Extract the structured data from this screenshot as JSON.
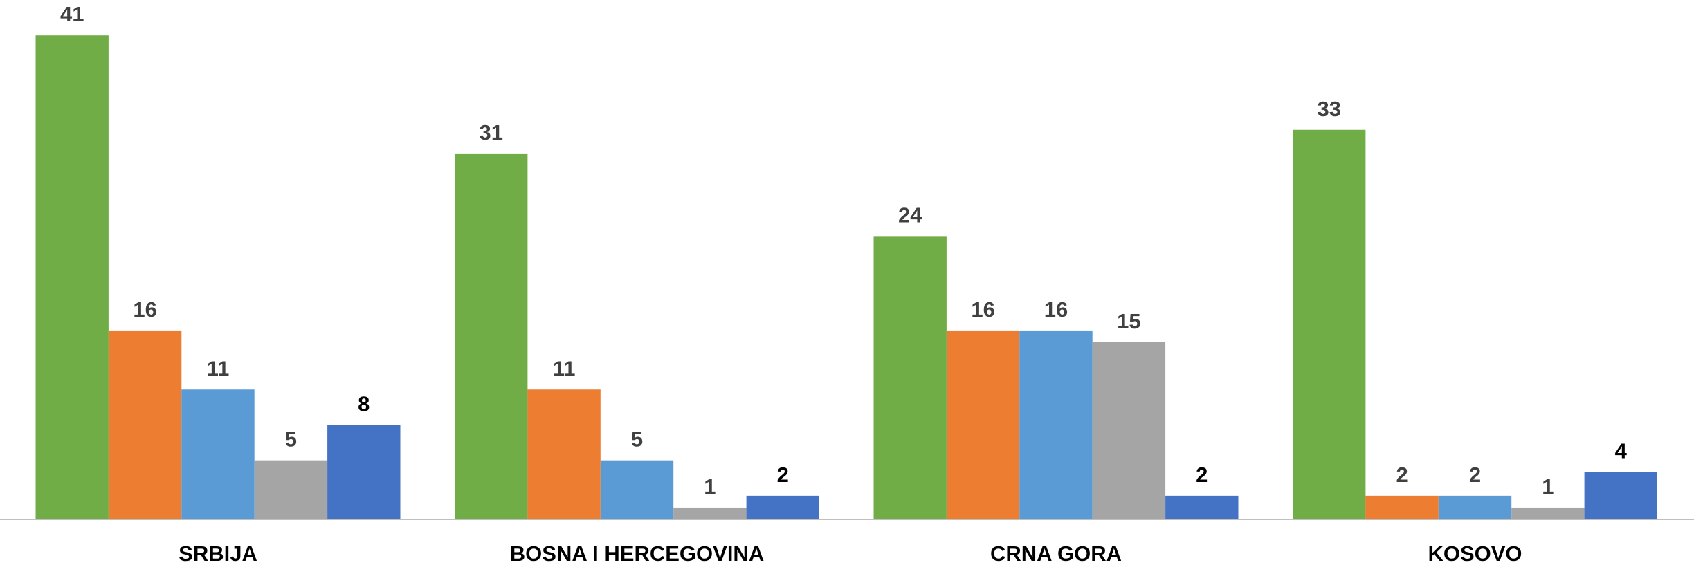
{
  "chart_data": {
    "type": "bar",
    "categories": [
      "SRBIJA",
      "BOSNA I HERCEGOVINA",
      "CRNA GORA",
      "KOSOVO"
    ],
    "series": [
      {
        "color": "#70ad47",
        "label_color": "#404040",
        "values": [
          41,
          31,
          24,
          33
        ]
      },
      {
        "color": "#ed7d31",
        "label_color": "#404040",
        "values": [
          16,
          11,
          16,
          2
        ]
      },
      {
        "color": "#5b9bd5",
        "label_color": "#404040",
        "values": [
          11,
          5,
          16,
          2
        ]
      },
      {
        "color": "#a5a5a5",
        "label_color": "#404040",
        "values": [
          5,
          1,
          15,
          1
        ]
      },
      {
        "color": "#4472c4",
        "label_color": "#000000",
        "values": [
          8,
          2,
          2,
          4
        ]
      }
    ],
    "ylim": [
      0,
      44
    ]
  }
}
